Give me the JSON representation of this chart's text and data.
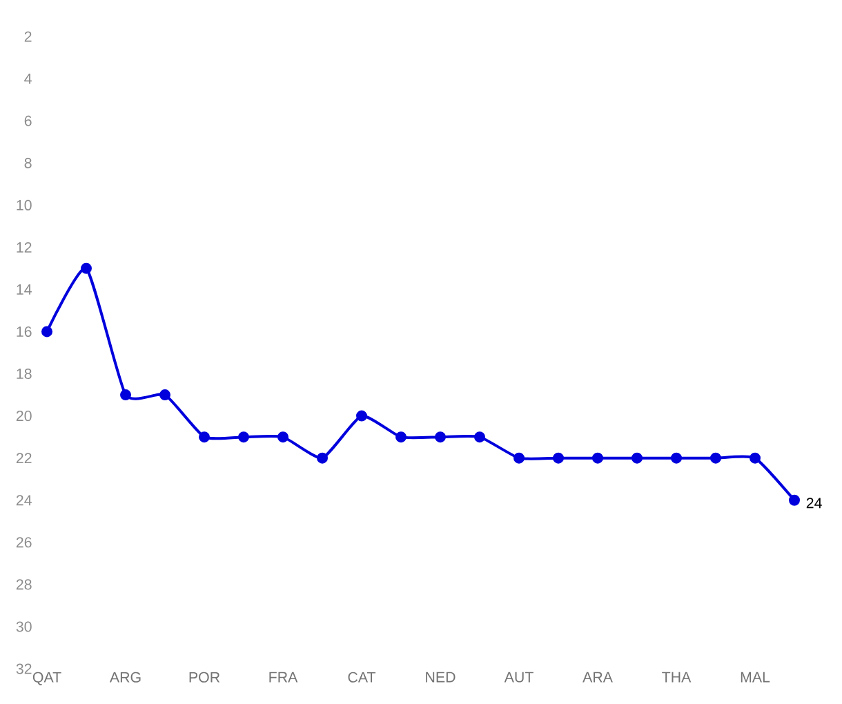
{
  "chart_data": {
    "type": "line",
    "categories": [
      "QAT",
      null,
      "ARG",
      null,
      "POR",
      null,
      "FRA",
      null,
      "CAT",
      null,
      "NED",
      null,
      "AUT",
      null,
      "ARA",
      null,
      "THA",
      null,
      "MAL",
      null
    ],
    "values": [
      16,
      13,
      19,
      19,
      21,
      21,
      21,
      22,
      20,
      21,
      21,
      21,
      22,
      22,
      22,
      22,
      22,
      22,
      22,
      24
    ],
    "value_labels": [
      null,
      null,
      null,
      null,
      null,
      null,
      null,
      null,
      null,
      null,
      null,
      null,
      null,
      null,
      null,
      null,
      null,
      null,
      null,
      "24"
    ],
    "color": "#0000dd",
    "marker": "circle",
    "line_style": "solid",
    "ylim": [
      32,
      2
    ],
    "yticks": [
      2,
      4,
      6,
      8,
      10,
      12,
      14,
      16,
      18,
      20,
      22,
      24,
      26,
      28,
      30,
      32
    ]
  }
}
